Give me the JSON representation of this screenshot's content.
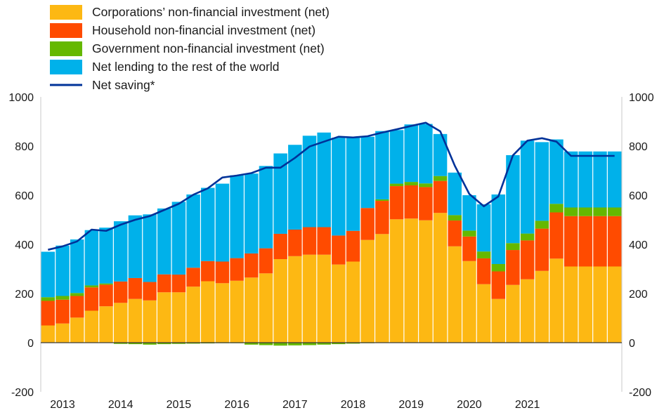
{
  "chart_data": {
    "type": "bar",
    "stacked": true,
    "title": "",
    "xlabel": "",
    "ylabel": "",
    "ylim": [
      -200,
      1000
    ],
    "yticks": [
      -200,
      0,
      200,
      400,
      600,
      800,
      1000
    ],
    "x_tick_labels": [
      "2013",
      "2014",
      "2015",
      "2016",
      "2017",
      "2018",
      "2019",
      "2020",
      "2021"
    ],
    "legend_position": "top-left",
    "categories": [
      "2013Q1",
      "2013Q2",
      "2013Q3",
      "2013Q4",
      "2014Q1",
      "2014Q2",
      "2014Q3",
      "2014Q4",
      "2015Q1",
      "2015Q2",
      "2015Q3",
      "2015Q4",
      "2016Q1",
      "2016Q2",
      "2016Q3",
      "2016Q4",
      "2017Q1",
      "2017Q2",
      "2017Q3",
      "2017Q4",
      "2018Q1",
      "2018Q2",
      "2018Q3",
      "2018Q4",
      "2019Q1",
      "2019Q2",
      "2019Q3",
      "2019Q4",
      "2020Q1",
      "2020Q2",
      "2020Q3",
      "2020Q4",
      "2021Q1",
      "2021Q2",
      "2021Q3",
      "2021Q4",
      "2022Q1",
      "2022Q2",
      "2022Q3",
      "2022Q4"
    ],
    "series": [
      {
        "name": "Corporations’ non-financial investment (net)",
        "color": "#FDB813",
        "values": [
          70,
          78,
          102,
          130,
          148,
          162,
          178,
          172,
          205,
          205,
          228,
          250,
          242,
          252,
          265,
          282,
          340,
          352,
          358,
          358,
          318,
          330,
          418,
          442,
          502,
          505,
          498,
          528,
          392,
          332,
          238,
          178,
          235,
          258,
          292,
          342,
          310,
          310,
          310,
          310
        ]
      },
      {
        "name": "Household non-financial investment (net)",
        "color": "#FF4B00",
        "values": [
          100,
          97,
          88,
          95,
          88,
          87,
          85,
          75,
          73,
          72,
          77,
          82,
          88,
          92,
          98,
          102,
          103,
          108,
          112,
          112,
          118,
          125,
          130,
          135,
          135,
          135,
          135,
          130,
          105,
          100,
          105,
          112,
          142,
          158,
          172,
          188,
          205,
          205,
          205,
          205
        ]
      },
      {
        "name": "Government non-financial investment (net)",
        "color": "#65B800",
        "values": [
          15,
          15,
          12,
          8,
          5,
          -5,
          -6,
          -8,
          -6,
          -5,
          -4,
          -3,
          -2,
          -2,
          -8,
          -10,
          -12,
          -11,
          -10,
          -8,
          -6,
          -4,
          -2,
          6,
          10,
          14,
          15,
          20,
          22,
          24,
          28,
          30,
          28,
          28,
          32,
          35,
          35,
          35,
          35,
          35
        ]
      },
      {
        "name": "Net lending to the rest of the world",
        "color": "#00B1EA",
        "values": [
          185,
          205,
          218,
          225,
          227,
          245,
          255,
          275,
          268,
          296,
          298,
          298,
          317,
          337,
          325,
          335,
          327,
          345,
          372,
          385,
          398,
          383,
          290,
          278,
          218,
          234,
          242,
          171,
          173,
          144,
          192,
          283,
          358,
          378,
          320,
          262,
          228,
          228,
          228,
          228
        ]
      }
    ],
    "line": {
      "name": "Net saving*",
      "color": "#003299",
      "values": [
        378,
        392,
        412,
        460,
        455,
        480,
        500,
        515,
        540,
        565,
        602,
        628,
        672,
        680,
        690,
        712,
        712,
        752,
        798,
        818,
        838,
        835,
        840,
        855,
        868,
        882,
        895,
        860,
        720,
        605,
        555,
        595,
        762,
        822,
        832,
        818,
        760,
        760,
        760,
        760
      ]
    }
  }
}
